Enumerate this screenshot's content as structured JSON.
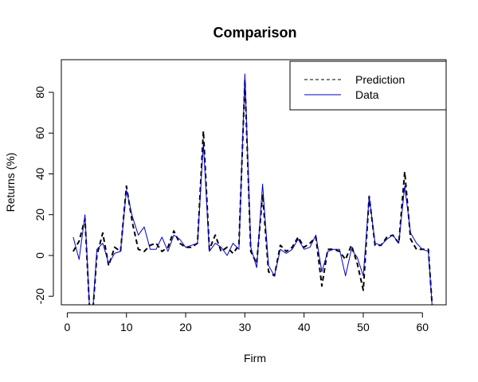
{
  "chart_data": {
    "type": "line",
    "title": "Comparison",
    "xlabel": "Firm",
    "ylabel": "Returns (%)",
    "xlim": [
      -1,
      64
    ],
    "ylim": [
      -24.2,
      96
    ],
    "x_ticks": [
      0,
      10,
      20,
      30,
      40,
      50,
      60
    ],
    "y_ticks": [
      -20,
      0,
      20,
      40,
      60,
      80
    ],
    "x_tick_labels": [
      "0",
      "10",
      "20",
      "30",
      "40",
      "50",
      "60"
    ],
    "y_tick_labels": [
      "-20",
      "0",
      "20",
      "40",
      "60",
      "80"
    ],
    "legend_position": "top-right",
    "grid": false,
    "x": [
      1,
      2,
      3,
      4,
      5,
      6,
      7,
      8,
      9,
      10,
      11,
      12,
      13,
      14,
      15,
      16,
      17,
      18,
      19,
      20,
      21,
      22,
      23,
      24,
      25,
      26,
      27,
      28,
      29,
      30,
      31,
      32,
      33,
      34,
      35,
      36,
      37,
      38,
      39,
      40,
      41,
      42,
      43,
      44,
      45,
      46,
      47,
      48,
      49,
      50,
      51,
      52,
      53,
      54,
      55,
      56,
      57,
      58,
      59,
      60,
      61,
      62
    ],
    "series": [
      {
        "name": "Prediction",
        "color": "#000000",
        "style": "dashed",
        "values": [
          2,
          7,
          18,
          -40,
          0,
          11,
          -5,
          4,
          2,
          34,
          16,
          3,
          2,
          5,
          6,
          2,
          4,
          12,
          6,
          4,
          4,
          6,
          61,
          3,
          10,
          2,
          4,
          1,
          5,
          86,
          2,
          -4,
          30,
          -8,
          -10,
          5,
          2,
          4,
          9,
          4,
          6,
          9,
          -15,
          3,
          3,
          2,
          -2,
          5,
          -4,
          -17,
          29,
          5,
          5,
          9,
          10,
          6,
          41,
          8,
          3,
          3,
          3,
          -40
        ]
      },
      {
        "name": "Data",
        "color": "#0000cc",
        "style": "solid",
        "values": [
          9,
          -2,
          20,
          -40,
          3,
          6,
          -4,
          1,
          2,
          32,
          19,
          10,
          14,
          3,
          3,
          9,
          2,
          10,
          8,
          4,
          5,
          6,
          55,
          2,
          6,
          4,
          0,
          6,
          3,
          89,
          4,
          -6,
          35,
          -5,
          -10,
          3,
          1,
          3,
          8,
          3,
          4,
          10,
          -8,
          2,
          3,
          3,
          -10,
          3,
          -1,
          -10,
          29,
          6,
          5,
          8,
          10,
          6,
          34,
          11,
          6,
          3,
          2,
          -40
        ]
      }
    ]
  }
}
